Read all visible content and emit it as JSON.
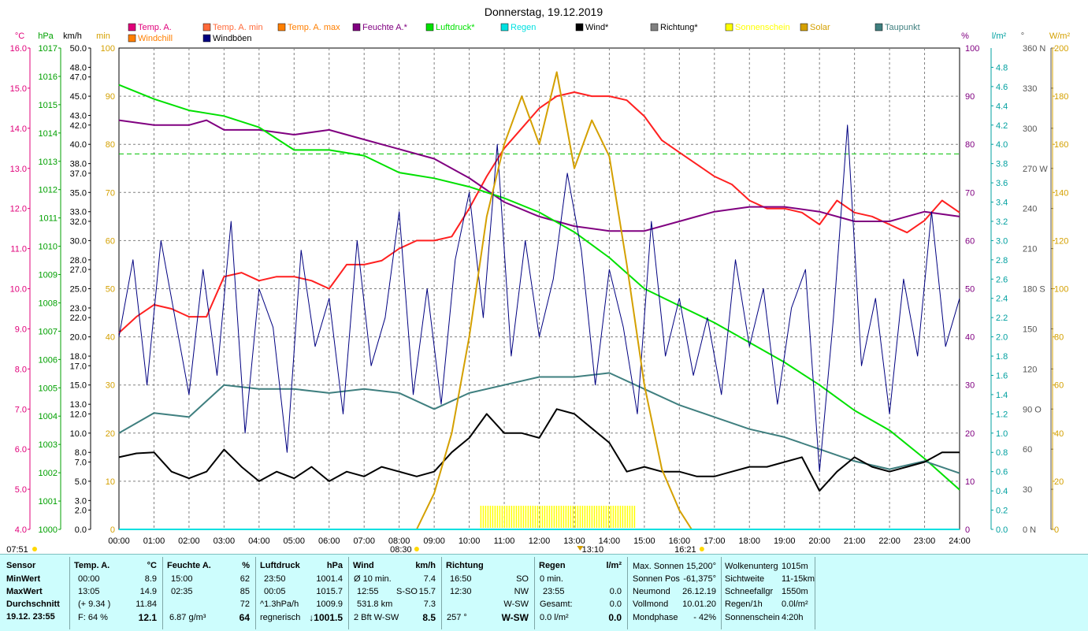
{
  "chart_data": {
    "type": "line",
    "title": "Donnerstag, 19.12.2019",
    "x_ticks": [
      "00:00",
      "01:00",
      "02:00",
      "03:00",
      "04:00",
      "05:00",
      "06:00",
      "07:00",
      "08:00",
      "09:00",
      "10:00",
      "11:00",
      "12:00",
      "13:00",
      "14:00",
      "15:00",
      "16:00",
      "17:00",
      "18:00",
      "19:00",
      "20:00",
      "21:00",
      "22:00",
      "23:00",
      "24:00"
    ],
    "xlim_hours": [
      0,
      24
    ],
    "sun_markers": {
      "sunrise": "08:30",
      "noon": "13:10",
      "sunset": "16:21",
      "left": "07:51"
    },
    "axes": {
      "temp": {
        "unit": "°C",
        "ticks": [
          "16.0",
          "15.0",
          "14.0",
          "13.0",
          "12.0",
          "11.0",
          "10.0",
          "9.0",
          "8.0",
          "7.0",
          "6.0",
          "5.0",
          "4.0"
        ],
        "range": [
          4,
          16
        ]
      },
      "pressure": {
        "unit": "hPa",
        "ticks": [
          "1017",
          "1016",
          "1015",
          "1014",
          "1013",
          "1012",
          "1011",
          "1010",
          "1009",
          "1008",
          "1007",
          "1006",
          "1005",
          "1004",
          "1003",
          "1002",
          "1001",
          "1000"
        ],
        "range": [
          1000,
          1017
        ]
      },
      "wind": {
        "unit": "km/h",
        "ticks": [
          "50.0",
          "48.0",
          "47.0",
          "45.0",
          "43.0",
          "42.0",
          "40.0",
          "38.0",
          "37.0",
          "35.0",
          "33.0",
          "32.0",
          "30.0",
          "28.0",
          "27.0",
          "25.0",
          "23.0",
          "22.0",
          "20.0",
          "18.0",
          "17.0",
          "15.0",
          "13.0",
          "12.0",
          "10.0",
          "8.0",
          "7.0",
          "5.0",
          "3.0",
          "2.0",
          "0.0"
        ],
        "range": [
          0,
          50
        ]
      },
      "min": {
        "unit": "min",
        "ticks": [
          "100",
          "90",
          "80",
          "70",
          "60",
          "50",
          "40",
          "30",
          "20",
          "10",
          "0"
        ],
        "range": [
          0,
          100
        ]
      },
      "humidity": {
        "unit": "%",
        "ticks": [
          "100",
          "90",
          "80",
          "70",
          "60",
          "50",
          "40",
          "30",
          "20",
          "10",
          "0"
        ],
        "range": [
          0,
          100
        ]
      },
      "rain": {
        "unit": "l/m²",
        "ticks": [
          "4.8",
          "4.6",
          "4.4",
          "4.2",
          "4.0",
          "3.8",
          "3.6",
          "3.4",
          "3.2",
          "3.0",
          "2.8",
          "2.6",
          "2.4",
          "2.2",
          "2.0",
          "1.8",
          "1.6",
          "1.4",
          "1.2",
          "1.0",
          "0.8",
          "0.6",
          "0.4",
          "0.2",
          "0.0"
        ],
        "range": [
          0,
          5
        ]
      },
      "direction": {
        "unit": "°",
        "ticks": [
          "360 N",
          "330",
          "300",
          "270 W",
          "240",
          "210",
          "180 S",
          "150",
          "120",
          "90  O",
          "60",
          "30",
          "0  N"
        ],
        "range": [
          0,
          360
        ]
      },
      "solar": {
        "unit": "W/m²",
        "ticks": [
          "200",
          "180",
          "160",
          "140",
          "120",
          "100",
          "80",
          "60",
          "40",
          "20",
          "0"
        ],
        "range": [
          0,
          200
        ]
      }
    },
    "legend": [
      {
        "label": "Temp. A.",
        "color": "#e0007a"
      },
      {
        "label": "Temp. A. min",
        "color": "#ff6a3a"
      },
      {
        "label": "Temp. A. max",
        "color": "#ff7f00"
      },
      {
        "label": "Feuchte A.*",
        "color": "#800080"
      },
      {
        "label": "Luftdruck*",
        "color": "#00e000"
      },
      {
        "label": "Regen",
        "color": "#00e0e0"
      },
      {
        "label": "Wind*",
        "color": "#000000"
      },
      {
        "label": "Richtung*",
        "color": "#808080"
      },
      {
        "label": "Sonnenschein",
        "color": "#ffff00"
      },
      {
        "label": "Solar",
        "color": "#d4a000"
      },
      {
        "label": "Taupunkt",
        "color": "#3f7f7f"
      },
      {
        "label": "Windchill",
        "color": "#ff7f00"
      },
      {
        "label": "Windböen",
        "color": "#000080"
      }
    ],
    "series": [
      {
        "name": "Temp. A.",
        "axis": "temp",
        "color": "#ff2020",
        "x": [
          0,
          0.5,
          1,
          1.5,
          2,
          2.5,
          3,
          3.5,
          4,
          4.5,
          5,
          5.5,
          6,
          6.5,
          7,
          7.5,
          8,
          8.5,
          9,
          9.5,
          10,
          10.5,
          11,
          11.5,
          12,
          12.5,
          13,
          13.5,
          14,
          14.5,
          15,
          15.5,
          16,
          16.5,
          17,
          17.5,
          18,
          18.5,
          19,
          19.5,
          20,
          20.5,
          21,
          21.5,
          22,
          22.5,
          23,
          23.5,
          24
        ],
        "y": [
          8.9,
          9.3,
          9.6,
          9.5,
          9.3,
          9.3,
          10.3,
          10.4,
          10.2,
          10.3,
          10.3,
          10.2,
          10.0,
          10.6,
          10.6,
          10.7,
          11.0,
          11.2,
          11.2,
          11.3,
          12.0,
          12.8,
          13.5,
          14.0,
          14.5,
          14.8,
          14.9,
          14.8,
          14.8,
          14.7,
          14.3,
          13.7,
          13.4,
          13.1,
          12.8,
          12.6,
          12.2,
          12.0,
          12.0,
          11.9,
          11.6,
          12.2,
          11.9,
          11.8,
          11.6,
          11.4,
          11.7,
          12.2,
          11.9
        ]
      },
      {
        "name": "Feuchte A.*",
        "axis": "humidity",
        "color": "#800080",
        "x": [
          0,
          1,
          2,
          2.5,
          3,
          4,
          5,
          6,
          7,
          8,
          9,
          10,
          11,
          12,
          13,
          14,
          15,
          16,
          17,
          18,
          19,
          20,
          21,
          22,
          23,
          24
        ],
        "y": [
          85,
          84,
          84,
          85,
          83,
          83,
          82,
          83,
          81,
          79,
          77,
          73,
          68,
          65,
          63,
          62,
          62,
          64,
          66,
          67,
          67,
          66,
          64,
          64,
          66,
          65
        ]
      },
      {
        "name": "Luftdruck*",
        "axis": "pressure",
        "color": "#00e000",
        "x": [
          0,
          1,
          2,
          3,
          4,
          5,
          6,
          7,
          8,
          9,
          10,
          11,
          12,
          13,
          14,
          15,
          16,
          17,
          18,
          19,
          20,
          21,
          22,
          23,
          24
        ],
        "y": [
          1015.7,
          1015.2,
          1014.8,
          1014.6,
          1014.2,
          1013.4,
          1013.4,
          1013.2,
          1012.6,
          1012.4,
          1012.1,
          1011.7,
          1011.2,
          1010.5,
          1009.6,
          1008.5,
          1007.9,
          1007.3,
          1006.6,
          1005.9,
          1005.1,
          1004.2,
          1003.5,
          1002.5,
          1001.4
        ]
      },
      {
        "name": "Taupunkt",
        "axis": "temp",
        "color": "#3f7f7f",
        "x": [
          0,
          1,
          2,
          3,
          4,
          5,
          6,
          7,
          8,
          9,
          10,
          11,
          12,
          13,
          14,
          15,
          16,
          17,
          18,
          19,
          20,
          21,
          22,
          23,
          24
        ],
        "y": [
          6.4,
          6.9,
          6.8,
          7.6,
          7.5,
          7.5,
          7.4,
          7.5,
          7.4,
          7.0,
          7.4,
          7.6,
          7.8,
          7.8,
          7.9,
          7.5,
          7.1,
          6.8,
          6.5,
          6.3,
          6.0,
          5.7,
          5.5,
          5.7,
          5.4
        ]
      },
      {
        "name": "Wind*",
        "axis": "wind",
        "color": "#000000",
        "x": [
          0,
          0.5,
          1,
          1.5,
          2,
          2.5,
          3,
          3.5,
          4,
          4.5,
          5,
          5.5,
          6,
          6.5,
          7,
          7.5,
          8,
          8.5,
          9,
          9.5,
          10,
          10.5,
          11,
          11.5,
          12,
          12.5,
          13,
          13.5,
          14,
          14.5,
          15,
          15.5,
          16,
          16.5,
          17,
          17.5,
          18,
          18.5,
          19,
          19.5,
          20,
          20.5,
          21,
          21.5,
          22,
          22.5,
          23,
          23.5,
          24
        ],
        "y": [
          7.5,
          7.9,
          8.0,
          6.0,
          5.3,
          6.0,
          8.3,
          6.5,
          5.0,
          6.0,
          5.3,
          6.5,
          5.0,
          6.0,
          5.5,
          6.5,
          6.0,
          5.5,
          6.0,
          8.0,
          9.5,
          12.0,
          10.0,
          10.0,
          9.5,
          12.5,
          12.0,
          10.5,
          9.0,
          6.0,
          6.5,
          6.0,
          6.0,
          5.5,
          5.5,
          6.0,
          6.5,
          6.5,
          7.0,
          7.5,
          4.0,
          6.0,
          7.5,
          6.5,
          6.0,
          6.5,
          7.0,
          8.0,
          8.0
        ]
      },
      {
        "name": "Windböen",
        "axis": "wind",
        "color": "#000080",
        "x": [
          0,
          0.4,
          0.8,
          1.2,
          1.6,
          2.0,
          2.4,
          2.8,
          3.2,
          3.6,
          4.0,
          4.4,
          4.8,
          5.2,
          5.6,
          6.0,
          6.4,
          6.8,
          7.2,
          7.6,
          8.0,
          8.4,
          8.8,
          9.2,
          9.6,
          10.0,
          10.4,
          10.8,
          11.2,
          11.6,
          12.0,
          12.4,
          12.8,
          13.2,
          13.6,
          14.0,
          14.4,
          14.8,
          15.2,
          15.6,
          16.0,
          16.4,
          16.8,
          17.2,
          17.6,
          18.0,
          18.4,
          18.8,
          19.2,
          19.6,
          20.0,
          20.4,
          20.8,
          21.2,
          21.6,
          22.0,
          22.4,
          22.8,
          23.2,
          23.6,
          24.0
        ],
        "y": [
          20,
          28,
          15,
          30,
          22,
          14,
          27,
          16,
          32,
          10,
          25,
          21,
          8,
          29,
          19,
          24,
          12,
          30,
          17,
          22,
          33,
          14,
          25,
          13,
          28,
          35,
          22,
          40,
          18,
          30,
          20,
          26,
          37,
          29,
          15,
          27,
          21,
          12,
          32,
          18,
          24,
          16,
          22,
          14,
          28,
          19,
          25,
          13,
          23,
          27,
          6,
          22,
          42,
          17,
          24,
          12,
          26,
          18,
          33,
          19,
          24
        ]
      },
      {
        "name": "Solar",
        "axis": "solar",
        "color": "#d4a000",
        "x": [
          8.5,
          9.0,
          9.5,
          10.0,
          10.5,
          11.0,
          11.5,
          12.0,
          12.5,
          13.0,
          13.5,
          14.0,
          14.5,
          15.0,
          15.5,
          16.0,
          16.35
        ],
        "y": [
          0,
          15,
          40,
          80,
          130,
          160,
          180,
          160,
          190,
          150,
          170,
          155,
          110,
          60,
          25,
          8,
          0
        ]
      },
      {
        "name": "Regen",
        "axis": "rain",
        "color": "#00e0e0",
        "x": [
          0,
          24
        ],
        "y": [
          0,
          0
        ]
      }
    ],
    "sunshine_bar": {
      "from": "10:20",
      "to": "14:45"
    },
    "reference_line": {
      "axis": "humidity",
      "value": 78,
      "color": "#00c000"
    }
  },
  "stats": {
    "sensor": {
      "h": "Sensor",
      "min": "MinWert",
      "max": "MaxWert",
      "avg": "Durchschnitt",
      "now": "19.12. 23:55"
    },
    "temp": {
      "h": "Temp. A.",
      "unit": "°C",
      "min_t": "00:00",
      "min_v": "8.9",
      "max_t": "13:05",
      "max_v": "14.9",
      "avg_t": "(+ 9.34 )",
      "avg_v": "11.84",
      "now_t": "F: 64 %",
      "now_v": "12.1"
    },
    "hum": {
      "h": "Feuchte A.",
      "unit": "%",
      "min_t": "15:00",
      "min_v": "62",
      "max_t": "02:35",
      "max_v": "85",
      "avg_v": "72",
      "now_t": "6.87 g/m³",
      "now_v": "64"
    },
    "press": {
      "h": "Luftdruck",
      "unit": "hPa",
      "min_t": "23:50",
      "min_v": "1001.4",
      "max_t": "00:05",
      "max_v": "1015.7",
      "avg_t": "^1.3hPa/h",
      "avg_v": "1009.9",
      "now_t": "regnerisch",
      "now_v": "↓1001.5"
    },
    "wind": {
      "h": "Wind",
      "unit": "km/h",
      "r1_t": "Ø 10 min.",
      "r1_v": "7.4",
      "r2_t": "12:55",
      "r2_d": "S-SO",
      "r2_v": "15.7",
      "r3_t": "531.8 km",
      "r3_v": "7.3",
      "r4_t": "2 Bft W-SW",
      "r4_v": "8.5"
    },
    "dir": {
      "h": "Richtung",
      "r1_t": "16:50",
      "r1_v": "SO",
      "r2_t": "12:30",
      "r2_v": "NW",
      "r3_v": "W-SW",
      "r4_t": "257 °",
      "r4_v": "W-SW"
    },
    "rain": {
      "h": "Regen",
      "unit": "l/m²",
      "r1_t": "0 min.",
      "r2_t": "23:55",
      "r2_v": "0.0",
      "r3_t": "Gesamt:",
      "r3_v": "0.0",
      "r4_t": "0.0 l/m²",
      "r4_v": "0.0"
    },
    "sun": {
      "r1_k": "Max. Sonnen",
      "r1_v": "15,200°",
      "r2_k": "Sonnen Pos",
      "r2_v": "-61,375°",
      "r3_k": "Neumond",
      "r3_v": "26.12.19",
      "r4_k": "Vollmond",
      "r4_v": "10.01.20",
      "r5_k": "Mondphase",
      "r5_v": "- 42%"
    },
    "other": {
      "r1_k": "Wolkenunterg",
      "r1_v": "1015m",
      "r2_k": "Sichtweite",
      "r2_v": "11-15km",
      "r3_k": "Schneefallgr",
      "r3_v": "1550m",
      "r4_k": "Regen/1h",
      "r4_v": "0.0l/m²",
      "r5_k": "Sonnenschein",
      "r5_v": "4:20h"
    }
  }
}
